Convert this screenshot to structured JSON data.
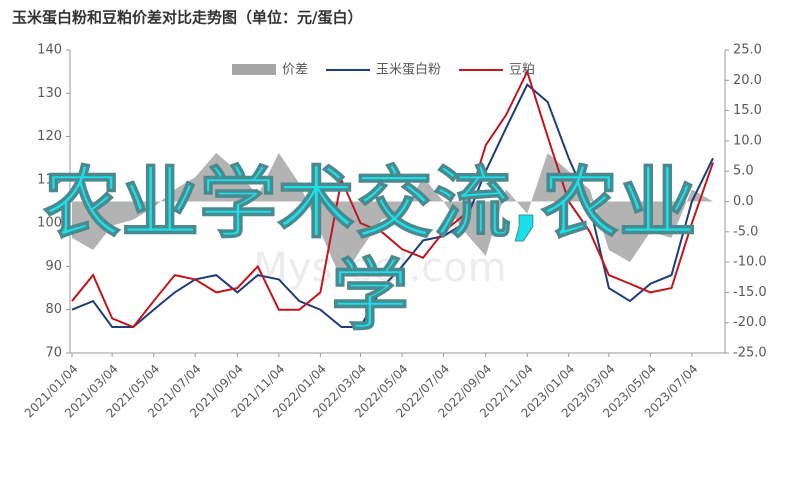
{
  "chart_data": {
    "type": "line",
    "title": "玉米蛋白粉和豆粕价差对比走势图（单位：元/蛋白）",
    "watermark": "Mysteel.com",
    "overlay_text": "农业学术交流,农业学",
    "x": [
      "2021/01/04",
      "2021/02/04",
      "2021/03/04",
      "2021/04/04",
      "2021/05/04",
      "2021/06/04",
      "2021/07/04",
      "2021/08/04",
      "2021/09/04",
      "2021/10/04",
      "2021/11/04",
      "2021/12/04",
      "2022/01/04",
      "2022/02/04",
      "2022/03/04",
      "2022/04/04",
      "2022/05/04",
      "2022/06/04",
      "2022/07/04",
      "2022/08/04",
      "2022/09/04",
      "2022/10/04",
      "2022/11/04",
      "2022/12/04",
      "2023/01/04",
      "2023/02/04",
      "2023/03/04",
      "2023/04/04",
      "2023/05/04",
      "2023/06/04",
      "2023/07/04",
      "2023/08/04"
    ],
    "xlim": [
      "2021/01/04",
      "2023/08/04"
    ],
    "xticks": [
      "2021/01/04",
      "2021/03/04",
      "2021/05/04",
      "2021/07/04",
      "2021/09/04",
      "2021/11/04",
      "2022/01/04",
      "2022/03/04",
      "2022/05/04",
      "2022/07/04",
      "2022/09/04",
      "2022/11/04",
      "2023/01/04",
      "2023/03/04",
      "2023/05/04",
      "2023/07/04"
    ],
    "ylim": [
      70,
      140
    ],
    "yticks": [
      70,
      80,
      90,
      100,
      110,
      120,
      130,
      140
    ],
    "y2lim": [
      -25,
      25
    ],
    "y2ticks": [
      {
        "value": -25,
        "label": "-25.0"
      },
      {
        "value": -20,
        "label": "-20.0"
      },
      {
        "value": -15,
        "label": "-15.0"
      },
      {
        "value": -10,
        "label": "-10.0"
      },
      {
        "value": -5,
        "label": "-5.0"
      },
      {
        "value": 0,
        "label": "0.0"
      },
      {
        "value": 5,
        "label": "5.0"
      },
      {
        "value": 10,
        "label": "10.0"
      },
      {
        "value": 15,
        "label": "15.0"
      },
      {
        "value": 20,
        "label": "20.0"
      },
      {
        "value": 25,
        "label": "25.0"
      }
    ],
    "series": [
      {
        "name": "价差",
        "color": "#a6a6a6",
        "axis": "y2",
        "kind": "area",
        "values": [
          -6,
          -8,
          -4,
          -3,
          -1,
          2,
          4,
          8,
          5,
          1,
          8,
          3,
          -5,
          -13,
          -8,
          -3,
          -2,
          4,
          0,
          -5,
          -9,
          2,
          -2,
          8,
          5,
          2,
          -8,
          -10,
          -5,
          -6,
          2,
          0
        ]
      },
      {
        "name": "玉米蛋白粉",
        "color": "#1f3d7a",
        "kind": "line",
        "values": [
          80,
          82,
          76,
          76,
          80,
          84,
          87,
          88,
          84,
          88,
          87,
          82,
          80,
          76,
          76,
          85,
          90,
          96,
          97,
          100,
          112,
          122,
          132,
          128,
          115,
          104,
          85,
          82,
          86,
          88,
          105,
          115
        ]
      },
      {
        "name": "豆粕",
        "color": "#c0161e",
        "kind": "line",
        "values": [
          82,
          88,
          78,
          76,
          82,
          88,
          87,
          84,
          85,
          90,
          80,
          80,
          84,
          110,
          100,
          98,
          94,
          92,
          98,
          102,
          118,
          125,
          135,
          120,
          105,
          98,
          88,
          86,
          84,
          85,
          100,
          114
        ]
      }
    ]
  }
}
